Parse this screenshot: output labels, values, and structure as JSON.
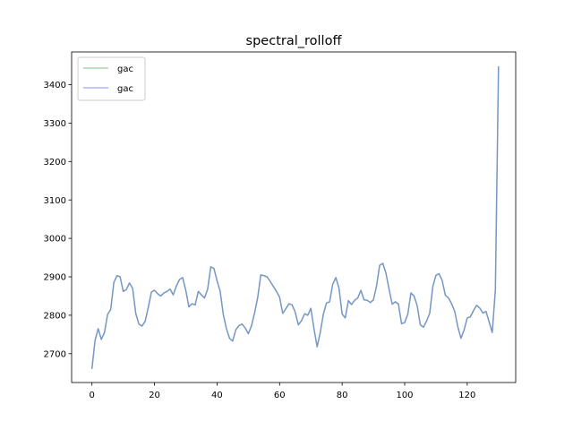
{
  "chart_data": {
    "type": "line",
    "title": "spectral_rolloff",
    "xlabel": "",
    "ylabel": "",
    "xlim": [
      -6.5,
      135.5
    ],
    "ylim": [
      2625,
      3485
    ],
    "x_ticks": [
      0,
      20,
      40,
      60,
      80,
      100,
      120
    ],
    "y_ticks": [
      2700,
      2800,
      2900,
      3000,
      3100,
      3200,
      3300,
      3400
    ],
    "grid": false,
    "legend": {
      "placement": "top-left",
      "entries": [
        "gac",
        "gac"
      ]
    },
    "series": [
      {
        "name": "gac",
        "color": "#2ca02c",
        "alpha": 0.4,
        "values": [
          2662,
          2735,
          2765,
          2737,
          2755,
          2802,
          2815,
          2885,
          2903,
          2900,
          2862,
          2867,
          2884,
          2870,
          2805,
          2777,
          2772,
          2784,
          2820,
          2860,
          2865,
          2856,
          2850,
          2858,
          2862,
          2868,
          2853,
          2876,
          2893,
          2898,
          2865,
          2822,
          2830,
          2827,
          2862,
          2853,
          2845,
          2868,
          2926,
          2922,
          2890,
          2862,
          2802,
          2765,
          2740,
          2733,
          2762,
          2773,
          2777,
          2767,
          2752,
          2772,
          2806,
          2846,
          2905,
          2903,
          2900,
          2888,
          2875,
          2862,
          2847,
          2805,
          2817,
          2830,
          2827,
          2808,
          2775,
          2786,
          2804,
          2800,
          2818,
          2765,
          2718,
          2755,
          2803,
          2832,
          2835,
          2881,
          2898,
          2870,
          2803,
          2793,
          2838,
          2828,
          2839,
          2845,
          2865,
          2840,
          2839,
          2833,
          2840,
          2876,
          2930,
          2935,
          2910,
          2868,
          2829,
          2835,
          2829,
          2778,
          2781,
          2803,
          2858,
          2850,
          2825,
          2775,
          2769,
          2785,
          2805,
          2875,
          2904,
          2908,
          2890,
          2852,
          2845,
          2830,
          2810,
          2770,
          2740,
          2762,
          2793,
          2796,
          2812,
          2826,
          2819,
          2806,
          2810,
          2783,
          2755,
          2866,
          3446
        ]
      },
      {
        "name": "gac",
        "color": "#0000ff",
        "alpha": 0.3,
        "values": [
          2662,
          2735,
          2765,
          2737,
          2755,
          2802,
          2815,
          2885,
          2903,
          2900,
          2862,
          2867,
          2884,
          2870,
          2805,
          2777,
          2772,
          2784,
          2820,
          2860,
          2865,
          2856,
          2850,
          2858,
          2862,
          2868,
          2853,
          2876,
          2893,
          2898,
          2865,
          2822,
          2830,
          2827,
          2862,
          2853,
          2845,
          2868,
          2926,
          2922,
          2890,
          2862,
          2802,
          2765,
          2740,
          2733,
          2762,
          2773,
          2777,
          2767,
          2752,
          2772,
          2806,
          2846,
          2905,
          2903,
          2900,
          2888,
          2875,
          2862,
          2847,
          2805,
          2817,
          2830,
          2827,
          2808,
          2775,
          2786,
          2804,
          2800,
          2818,
          2765,
          2718,
          2755,
          2803,
          2832,
          2835,
          2881,
          2898,
          2870,
          2803,
          2793,
          2838,
          2828,
          2839,
          2845,
          2865,
          2840,
          2839,
          2833,
          2840,
          2876,
          2930,
          2935,
          2910,
          2868,
          2829,
          2835,
          2829,
          2778,
          2781,
          2803,
          2858,
          2850,
          2825,
          2775,
          2769,
          2785,
          2805,
          2875,
          2904,
          2908,
          2890,
          2852,
          2845,
          2830,
          2810,
          2770,
          2740,
          2762,
          2793,
          2796,
          2812,
          2826,
          2819,
          2806,
          2810,
          2783,
          2755,
          2866,
          3446
        ]
      }
    ]
  }
}
